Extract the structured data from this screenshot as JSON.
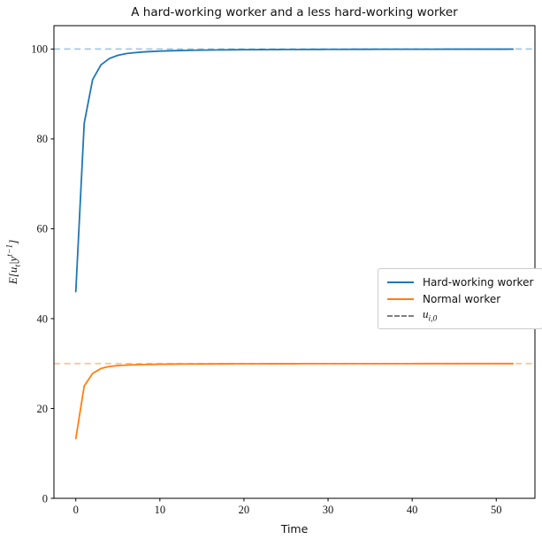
{
  "figure": {
    "title": "A hard-working worker and a less hard-working worker",
    "xlabel": "Time",
    "ylabel": {
      "pre": "E[u",
      "sub": "t",
      "mid": "|y",
      "sup": "t−1",
      "post": "]"
    }
  },
  "legend": {
    "items": [
      {
        "key": "hard-working-worker",
        "label": "Hard-working worker",
        "color": "#1f77b4",
        "style": "solid"
      },
      {
        "key": "normal-worker",
        "label": "Normal worker",
        "color": "#ff7f0e",
        "style": "solid"
      },
      {
        "key": "u-i-0",
        "label": "u_{i,0}",
        "label_parts": {
          "base": "u",
          "sub": "i,0"
        },
        "color": "#7f7f7f",
        "style": "dashed"
      }
    ]
  },
  "chart_data": {
    "type": "line",
    "title": "A hard-working worker and a less hard-working worker",
    "xlabel": "Time",
    "ylabel": "E[u_t | y^{t-1}]",
    "grid": false,
    "legend_position": "center right",
    "xlim": [
      -2.6,
      54.6
    ],
    "ylim": [
      0,
      105.2
    ],
    "xticks": [
      0,
      10,
      20,
      30,
      40,
      50
    ],
    "yticks": [
      0,
      20,
      40,
      60,
      80,
      100
    ],
    "x": [
      0,
      1,
      2,
      3,
      4,
      5,
      6,
      7,
      8,
      9,
      10,
      11,
      12,
      13,
      14,
      15,
      16,
      17,
      18,
      19,
      20,
      21,
      22,
      23,
      24,
      25,
      26,
      27,
      28,
      29,
      30,
      31,
      32,
      33,
      34,
      35,
      36,
      37,
      38,
      39,
      40,
      41,
      42,
      43,
      44,
      45,
      46,
      47,
      48,
      49,
      50,
      51,
      52
    ],
    "series": [
      {
        "key": "hard-working-worker",
        "name": "Hard-working worker",
        "color": "#1f77b4",
        "values": [
          46.0,
          83.5,
          93.2,
          96.5,
          97.9,
          98.6,
          99.0,
          99.2,
          99.35,
          99.45,
          99.53,
          99.6,
          99.65,
          99.69,
          99.73,
          99.76,
          99.78,
          99.8,
          99.82,
          99.84,
          99.85,
          99.86,
          99.87,
          99.88,
          99.89,
          99.9,
          99.905,
          99.91,
          99.915,
          99.92,
          99.925,
          99.93,
          99.934,
          99.938,
          99.941,
          99.944,
          99.947,
          99.95,
          99.952,
          99.954,
          99.956,
          99.958,
          99.96,
          99.962,
          99.964,
          99.965,
          99.967,
          99.968,
          99.969,
          99.97,
          99.971,
          99.972,
          99.973
        ]
      },
      {
        "key": "normal-worker",
        "name": "Normal worker",
        "color": "#ff7f0e",
        "values": [
          13.3,
          25.0,
          27.8,
          28.9,
          29.35,
          29.55,
          29.65,
          29.72,
          29.77,
          29.81,
          29.84,
          29.86,
          29.88,
          29.89,
          29.9,
          29.91,
          29.92,
          29.928,
          29.934,
          29.94,
          29.944,
          29.948,
          29.951,
          29.954,
          29.957,
          29.959,
          29.961,
          29.963,
          29.965,
          29.966,
          29.968,
          29.969,
          29.97,
          29.971,
          29.972,
          29.973,
          29.974,
          29.975,
          29.976,
          29.977,
          29.977,
          29.978,
          29.978,
          29.979,
          29.979,
          29.98,
          29.98,
          29.981,
          29.981,
          29.982,
          29.982,
          29.983,
          29.983
        ]
      }
    ],
    "reference_lines": [
      {
        "key": "u0-hard-working",
        "name": "u_{i,0} hard-working worker",
        "y": 100,
        "color": "#a3c8e4",
        "style": "dashed"
      },
      {
        "key": "u0-normal",
        "name": "u_{i,0} normal worker",
        "y": 30,
        "color": "#ffc18f",
        "style": "dashed"
      }
    ]
  }
}
